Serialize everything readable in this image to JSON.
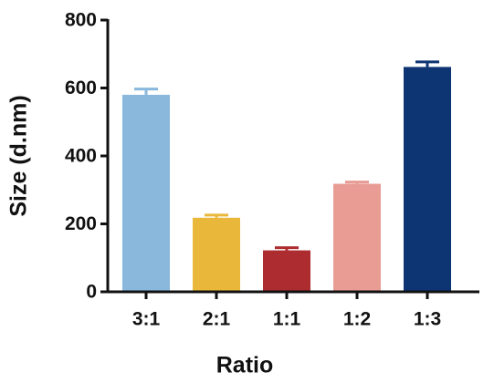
{
  "chart_data": {
    "type": "bar",
    "categories": [
      "3:1",
      "2:1",
      "1:1",
      "1:2",
      "1:3"
    ],
    "values": [
      580,
      218,
      122,
      318,
      662
    ],
    "errors": [
      17,
      8,
      8,
      5,
      15
    ],
    "colors": [
      "#8ab8dd",
      "#e9b83a",
      "#ad2c30",
      "#e89c94",
      "#0d3473"
    ],
    "xlabel": "Ratio",
    "ylabel": "Size (d.nm)",
    "ylim": [
      0,
      800
    ],
    "yticks": [
      0,
      200,
      400,
      600,
      800
    ],
    "grid": false
  }
}
